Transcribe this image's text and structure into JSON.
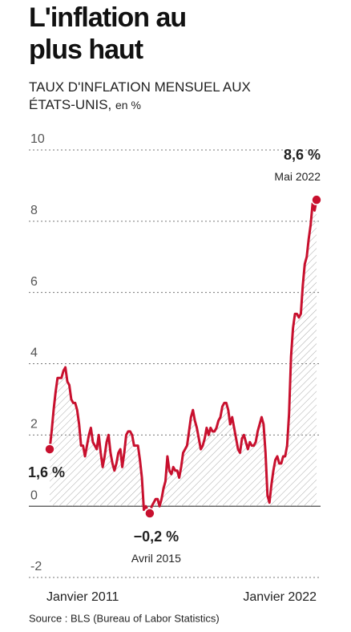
{
  "chart_data": {
    "type": "line",
    "title": "L'inflation au plus haut",
    "subtitle": "TAUX D'INFLATION MENSUEL AUX ÉTATS-UNIS,",
    "unit": "en %",
    "source": "Source : BLS (Bureau of Labor Statistics)",
    "color": "#c8102e",
    "grid": true,
    "ylim": [
      -2,
      10
    ],
    "yticks": [
      -2,
      0,
      2,
      4,
      6,
      8,
      10
    ],
    "categories": [
      "Janvier 2011",
      null,
      null,
      null,
      null,
      null,
      null,
      null,
      null,
      null,
      null,
      null,
      null,
      null,
      null,
      null,
      null,
      null,
      null,
      null,
      null,
      null,
      null,
      null,
      null,
      null,
      null,
      null,
      null,
      null,
      null,
      null,
      null,
      null,
      null,
      null,
      null,
      null,
      null,
      null,
      null,
      null,
      null,
      null,
      null,
      null,
      null,
      null,
      null,
      null,
      null,
      null,
      null,
      null,
      null,
      null,
      null,
      null,
      null,
      null,
      null,
      null,
      null,
      null,
      null,
      null,
      null,
      null,
      null,
      null,
      null,
      null,
      null,
      null,
      null,
      null,
      null,
      null,
      null,
      null,
      null,
      null,
      null,
      null,
      null,
      null,
      null,
      null,
      null,
      null,
      null,
      null,
      null,
      null,
      null,
      null,
      null,
      null,
      null,
      null,
      null,
      null,
      null,
      null,
      null,
      null,
      null,
      null,
      null,
      null,
      null,
      null,
      null,
      null,
      null,
      null,
      null,
      null,
      null,
      null,
      null,
      null,
      null,
      null,
      null,
      null,
      null,
      null,
      null,
      null,
      null,
      null,
      "Janvier 2022",
      null,
      null,
      null,
      null
    ],
    "values": [
      1.6,
      2.1,
      2.7,
      3.2,
      3.6,
      3.6,
      3.6,
      3.8,
      3.9,
      3.5,
      3.4,
      3.0,
      2.9,
      2.9,
      2.7,
      2.3,
      1.7,
      1.7,
      1.4,
      1.7,
      2.0,
      2.2,
      1.8,
      1.7,
      1.6,
      2.0,
      1.5,
      1.1,
      1.4,
      1.8,
      2.0,
      1.5,
      1.2,
      1.0,
      1.2,
      1.5,
      1.6,
      1.1,
      1.5,
      2.0,
      2.1,
      2.1,
      2.0,
      1.7,
      1.7,
      1.7,
      1.3,
      0.8,
      -0.1,
      0.0,
      -0.1,
      -0.2,
      0.0,
      0.1,
      0.2,
      0.2,
      0.0,
      0.2,
      0.5,
      0.7,
      1.4,
      1.0,
      0.9,
      1.1,
      1.0,
      1.0,
      0.8,
      1.1,
      1.5,
      1.6,
      1.7,
      2.1,
      2.5,
      2.7,
      2.4,
      2.2,
      1.9,
      1.6,
      1.7,
      1.9,
      2.2,
      2.0,
      2.2,
      2.1,
      2.1,
      2.2,
      2.4,
      2.5,
      2.8,
      2.9,
      2.9,
      2.7,
      2.3,
      2.5,
      2.2,
      1.9,
      1.6,
      1.5,
      1.9,
      2.0,
      1.8,
      1.6,
      1.8,
      1.7,
      1.7,
      1.8,
      2.1,
      2.3,
      2.5,
      2.3,
      1.5,
      0.3,
      0.1,
      0.6,
      1.0,
      1.3,
      1.4,
      1.2,
      1.2,
      1.4,
      1.4,
      1.7,
      2.6,
      4.2,
      5.0,
      5.4,
      5.4,
      5.3,
      5.4,
      6.2,
      6.8,
      7.0,
      7.5,
      7.9,
      8.5,
      8.3,
      8.6
    ],
    "value_labels": [
      "1,6 %",
      null,
      null,
      null,
      null,
      null,
      null,
      null,
      null,
      null,
      null,
      null,
      null,
      null,
      null,
      null,
      null,
      null,
      null,
      null,
      null,
      null,
      null,
      null,
      null,
      null,
      null,
      null,
      null,
      null,
      null,
      null,
      null,
      null,
      null,
      null,
      null,
      null,
      null,
      null,
      null,
      null,
      null,
      null,
      null,
      null,
      null,
      null,
      null,
      null,
      null,
      "−0,2 %",
      null,
      null,
      null,
      null,
      null,
      null,
      null,
      null,
      null,
      null,
      null,
      null,
      null,
      null,
      null,
      null,
      null,
      null,
      null,
      null,
      null,
      null,
      null,
      null,
      null,
      null,
      null,
      null,
      null,
      null,
      null,
      null,
      null,
      null,
      null,
      null,
      null,
      null,
      null,
      null,
      null,
      null,
      null,
      null,
      null,
      null,
      null,
      null,
      null,
      null,
      null,
      null,
      null,
      null,
      null,
      null,
      null,
      null,
      null,
      null,
      null,
      null,
      null,
      null,
      null,
      null,
      null,
      null,
      null,
      null,
      null,
      null,
      null,
      null,
      null,
      null,
      null,
      null,
      null,
      null,
      null,
      null,
      null,
      null,
      "8,6 %"
    ],
    "date_labels": [
      null,
      null,
      null,
      null,
      null,
      null,
      null,
      null,
      null,
      null,
      null,
      null,
      null,
      null,
      null,
      null,
      null,
      null,
      null,
      null,
      null,
      null,
      null,
      null,
      null,
      null,
      null,
      null,
      null,
      null,
      null,
      null,
      null,
      null,
      null,
      null,
      null,
      null,
      null,
      null,
      null,
      null,
      null,
      null,
      null,
      null,
      null,
      null,
      null,
      null,
      null,
      "Avril 2015",
      null,
      null,
      null,
      null,
      null,
      null,
      null,
      null,
      null,
      null,
      null,
      null,
      null,
      null,
      null,
      null,
      null,
      null,
      null,
      null,
      null,
      null,
      null,
      null,
      null,
      null,
      null,
      null,
      null,
      null,
      null,
      null,
      null,
      null,
      null,
      null,
      null,
      null,
      null,
      null,
      null,
      null,
      null,
      null,
      null,
      null,
      null,
      null,
      null,
      null,
      null,
      null,
      null,
      null,
      null,
      null,
      null,
      null,
      null,
      null,
      null,
      null,
      null,
      null,
      null,
      null,
      null,
      null,
      null,
      null,
      null,
      null,
      null,
      null,
      null,
      null,
      null,
      null,
      null,
      null,
      null,
      null,
      null,
      null,
      "Mai 2022"
    ]
  }
}
